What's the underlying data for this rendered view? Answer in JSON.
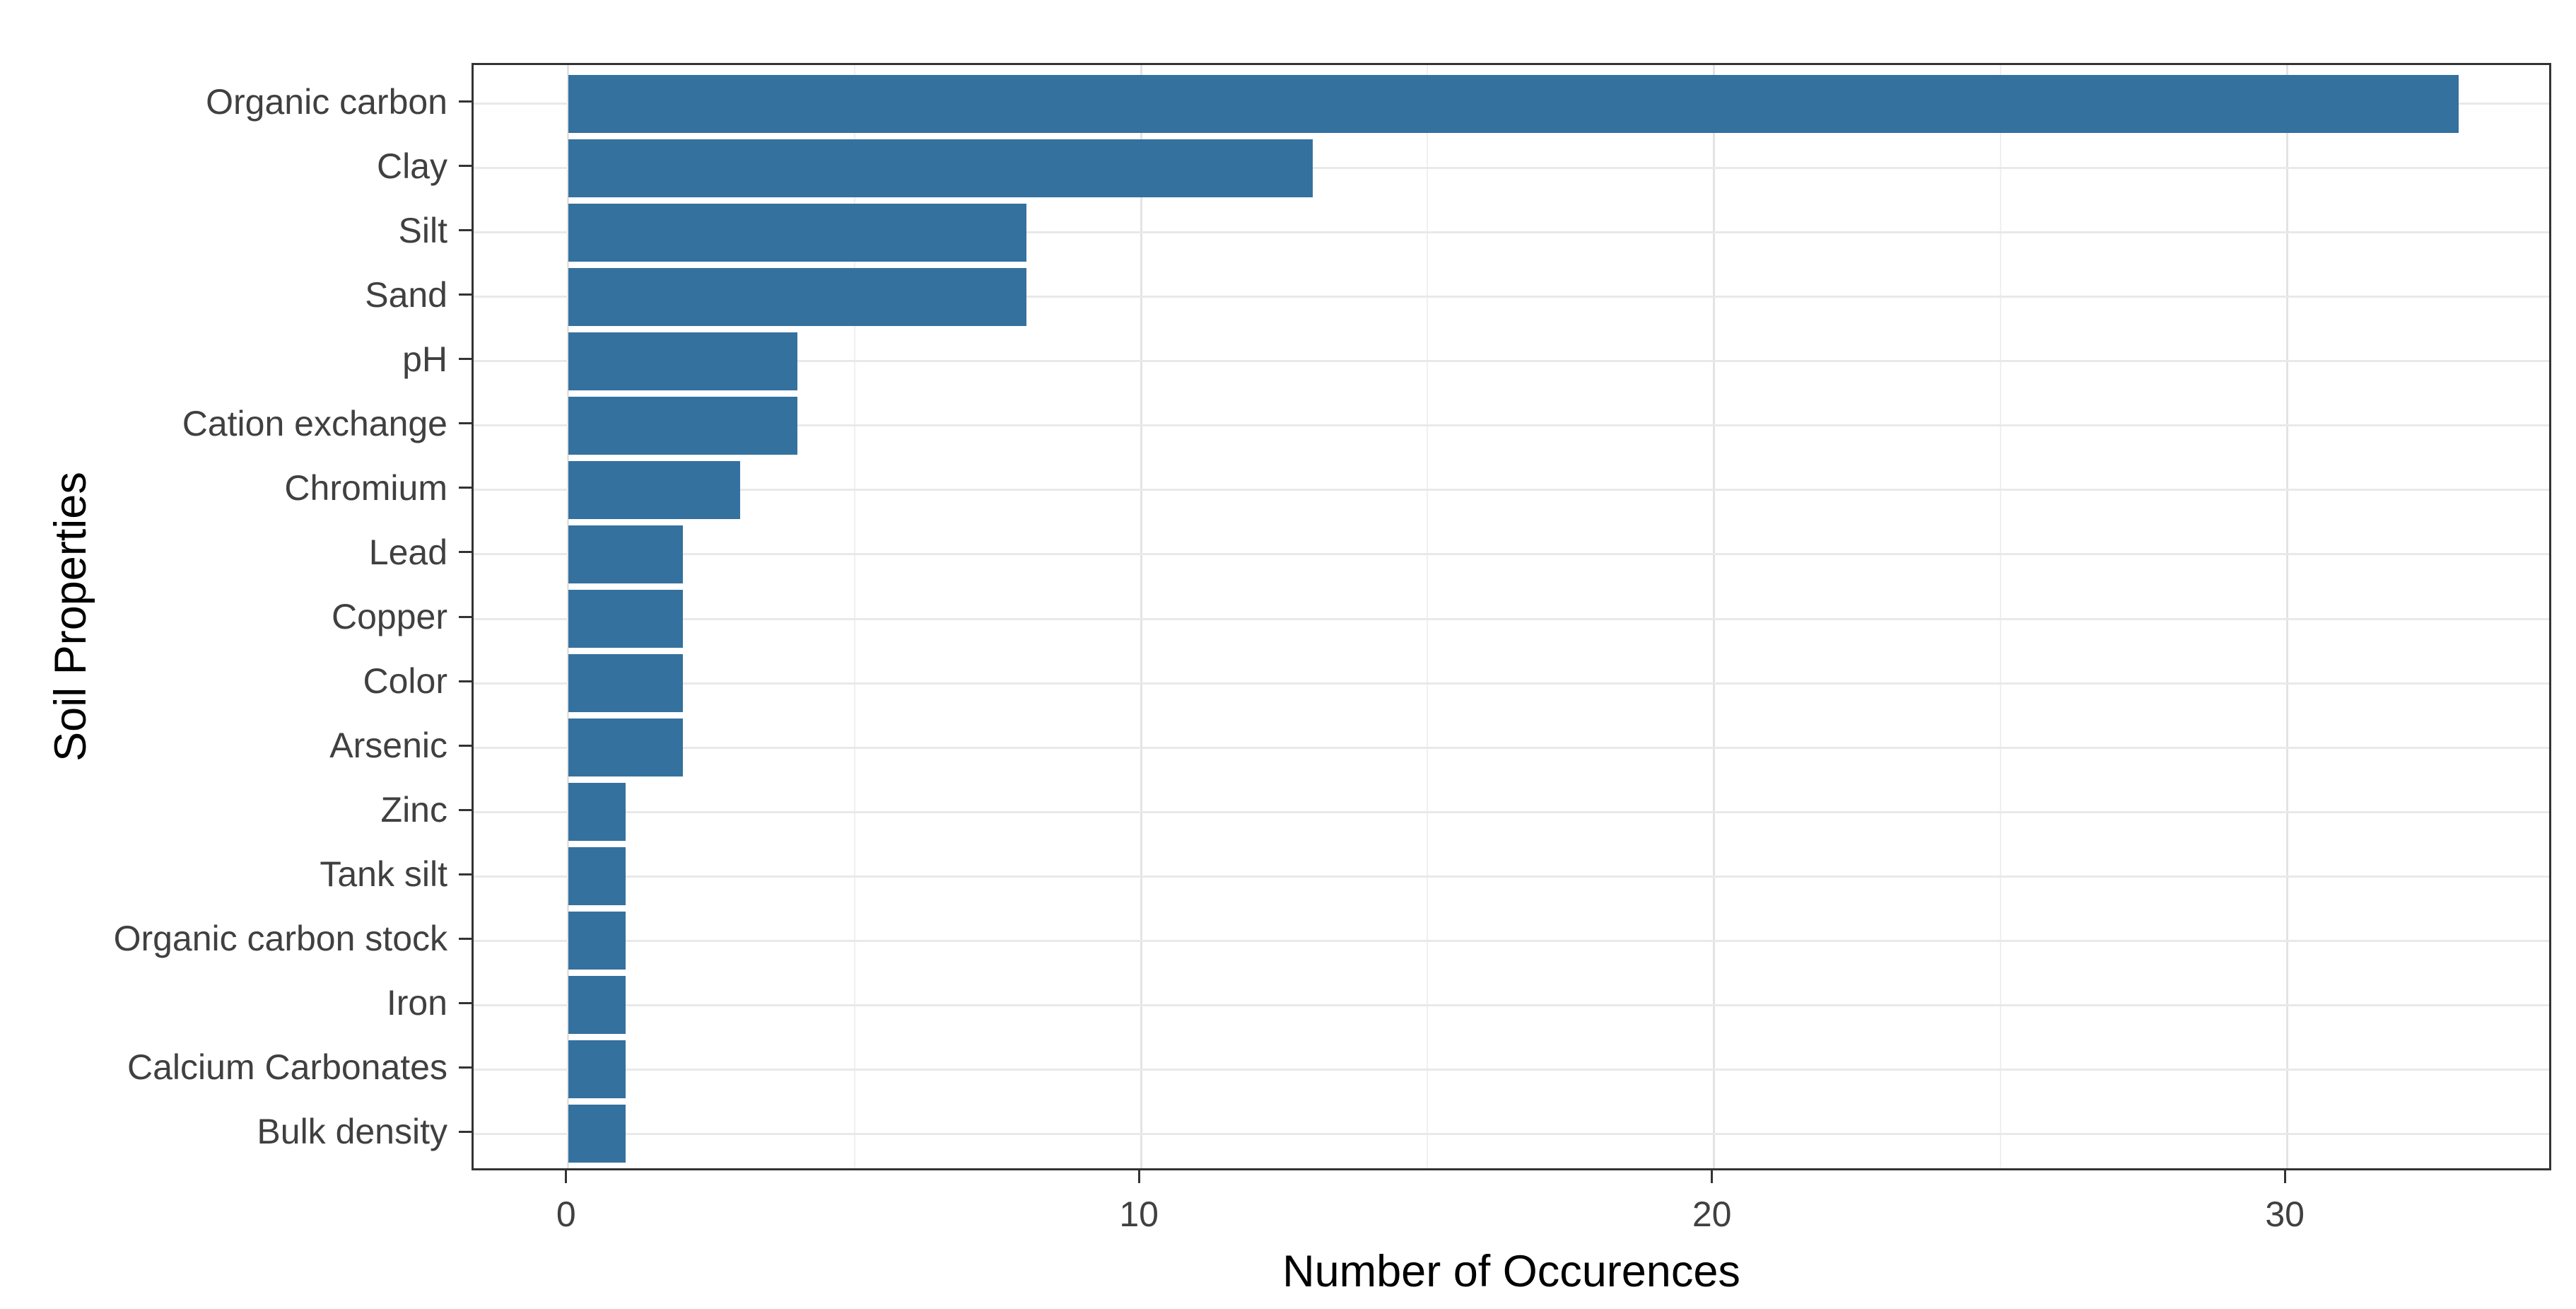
{
  "chart_data": {
    "type": "bar",
    "orientation": "horizontal",
    "title": "",
    "xlabel": "Number of Occurences",
    "ylabel": "Soil Properties",
    "categories": [
      "Organic carbon",
      "Clay",
      "Silt",
      "Sand",
      "pH",
      "Cation exchange",
      "Chromium",
      "Lead",
      "Copper",
      "Color",
      "Arsenic",
      "Zinc",
      "Tank silt",
      "Organic carbon stock",
      "Iron",
      "Calcium Carbonates",
      "Bulk density"
    ],
    "values": [
      33,
      13,
      8,
      8,
      4,
      4,
      3,
      2,
      2,
      2,
      2,
      1,
      1,
      1,
      1,
      1,
      1
    ],
    "x_ticks": [
      0,
      10,
      20,
      30
    ],
    "x_minor_ticks": [
      5,
      15,
      25
    ],
    "x_range_shown": [
      -1.65,
      34.65
    ],
    "xlim_data": [
      0,
      33
    ],
    "grid": true,
    "legend": false,
    "style": {
      "bar_color": "#34719f",
      "major_grid_color": "#e3e3e3",
      "minor_grid_color": "#f0f0f0",
      "horizontal_grid_color": "#e9e9e9",
      "panel_border_color": "#333333",
      "tick_color": "#333333",
      "tick_label_color": "#404040",
      "axis_title_color": "#000000",
      "background_color": "#ffffff"
    }
  }
}
